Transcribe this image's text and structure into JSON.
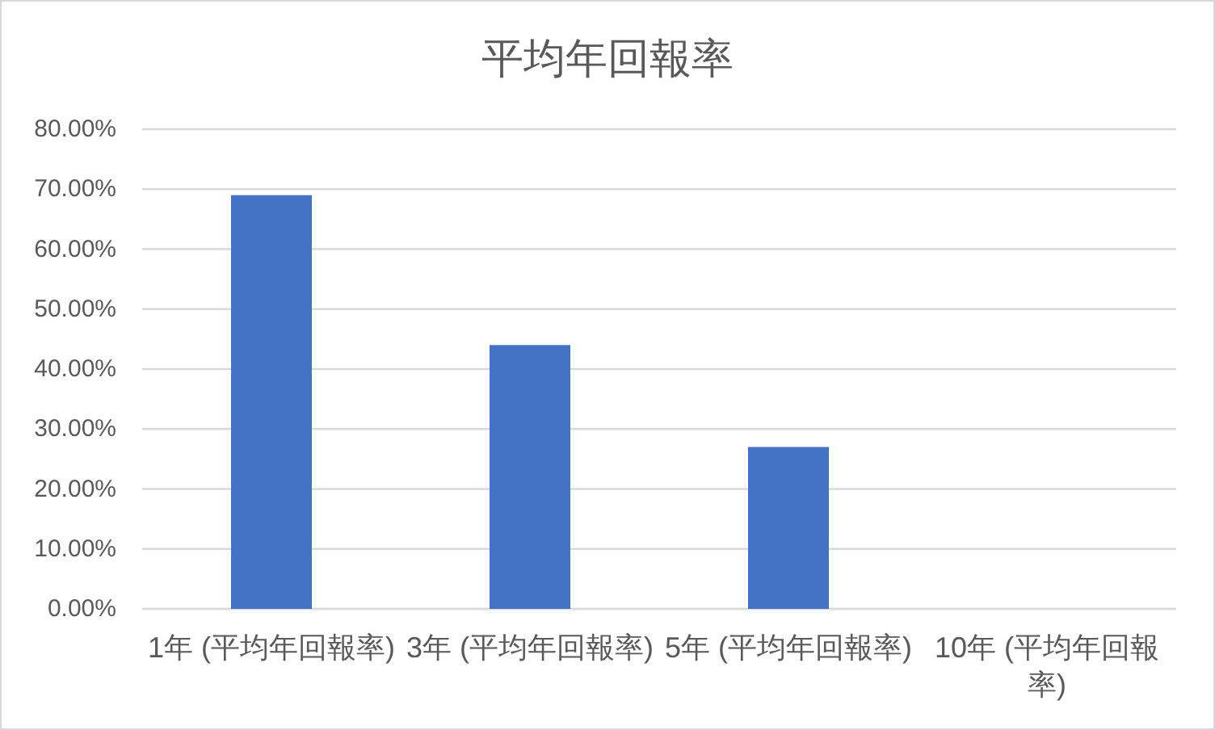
{
  "chart_data": {
    "type": "bar",
    "title": "平均年回報率",
    "categories": [
      "1年 (平均年回報率)",
      "3年 (平均年回報率)",
      "5年 (平均年回報率)",
      "10年 (平均年回報率)"
    ],
    "values": [
      69,
      44,
      27,
      null
    ],
    "color": "#4472c4",
    "ylim": [
      0,
      80
    ],
    "yticks": [
      {
        "value": 0,
        "label": "0.00%"
      },
      {
        "value": 10,
        "label": "10.00%"
      },
      {
        "value": 20,
        "label": "20.00%"
      },
      {
        "value": 30,
        "label": "30.00%"
      },
      {
        "value": 40,
        "label": "40.00%"
      },
      {
        "value": 50,
        "label": "50.00%"
      },
      {
        "value": 60,
        "label": "60.00%"
      },
      {
        "value": 70,
        "label": "70.00%"
      },
      {
        "value": 80,
        "label": "80.00%"
      }
    ],
    "grid": "y"
  }
}
